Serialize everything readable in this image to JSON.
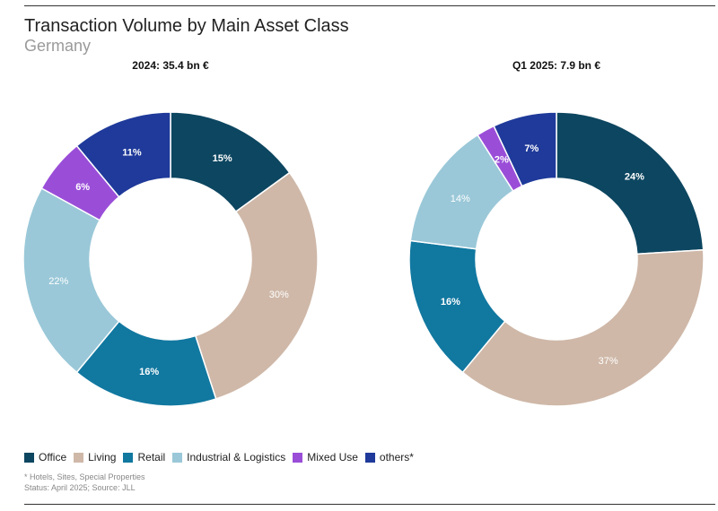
{
  "header": {
    "title": "Transaction Volume by Main Asset Class",
    "subtitle": "Germany"
  },
  "chart_data": [
    {
      "type": "pie",
      "title": "2024: 35.4 bn €",
      "categories": [
        "Office",
        "Living",
        "Retail",
        "Industrial & Logistics",
        "Mixed Use",
        "others*"
      ],
      "values": [
        15,
        30,
        16,
        22,
        6,
        11
      ],
      "value_labels": [
        "15%",
        "30%",
        "16%",
        "22%",
        "6%",
        "11%"
      ],
      "donut": true
    },
    {
      "type": "pie",
      "title": "Q1 2025: 7.9 bn €",
      "categories": [
        "Office",
        "Living",
        "Retail",
        "Industrial & Logistics",
        "Mixed Use",
        "others*"
      ],
      "values": [
        24,
        37,
        16,
        14,
        2,
        7
      ],
      "value_labels": [
        "24%",
        "37%",
        "16%",
        "14%",
        "2%",
        "7%"
      ],
      "donut": true
    }
  ],
  "legend": {
    "items": [
      {
        "label": "Office",
        "color": "#0d4660"
      },
      {
        "label": "Living",
        "color": "#cfb8a8"
      },
      {
        "label": "Retail",
        "color": "#1178a0"
      },
      {
        "label": "Industrial & Logistics",
        "color": "#9ac8d8"
      },
      {
        "label": "Mixed Use",
        "color": "#9a4ed8"
      },
      {
        "label": "others*",
        "color": "#1f3a9a"
      }
    ]
  },
  "footnote": {
    "line1": "* Hotels, Sites, Special Properties",
    "line2": "Status: April 2025; Source: JLL"
  },
  "colors": {
    "Office": "#0d4660",
    "Living": "#cfb8a8",
    "Retail": "#1178a0",
    "Industrial & Logistics": "#9ac8d8",
    "Mixed Use": "#9a4ed8",
    "others*": "#1f3a9a"
  }
}
